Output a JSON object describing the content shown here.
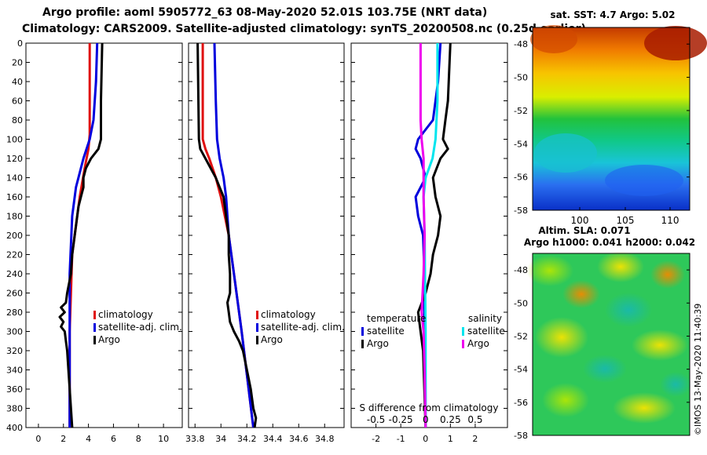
{
  "header": {
    "line1": "Argo profile: aoml 5905772_63 08-May-2020 52.01S 103.75E (NRT data)",
    "line2": "Climatology: CARS2009. Satellite-adjusted climatology: synTS_20200508.nc (0.25d earlier)"
  },
  "colors": {
    "climatology": "#e01010",
    "satellite": "#0000dd",
    "argo": "#000000",
    "salinity_sat": "#00e5ee",
    "salinity_argo": "#ee00ee"
  },
  "depth_ticks": [
    "0",
    "20",
    "40",
    "60",
    "80",
    "100",
    "120",
    "140",
    "160",
    "180",
    "200",
    "220",
    "240",
    "260",
    "280",
    "300",
    "320",
    "340",
    "360",
    "380",
    "400"
  ],
  "chart_data": [
    {
      "id": "temperature",
      "type": "line",
      "xlim": [
        -1,
        11.5
      ],
      "ylim": [
        400,
        0
      ],
      "xticks": [
        "0",
        "2",
        "4",
        "6",
        "8",
        "10"
      ],
      "xtick_values": [
        0,
        2,
        4,
        6,
        8,
        10
      ],
      "legend": [
        "climatology",
        "satellite-adj. clim.",
        "Argo"
      ],
      "series": [
        {
          "name": "climatology",
          "color": "climatology",
          "depth": [
            0,
            95,
            110,
            130,
            160,
            190,
            220,
            300,
            400
          ],
          "values": [
            4.1,
            4.1,
            4.0,
            3.7,
            3.3,
            3.0,
            2.7,
            2.5,
            2.5
          ]
        },
        {
          "name": "satellite-adj. clim.",
          "color": "satellite",
          "depth": [
            0,
            40,
            80,
            100,
            120,
            150,
            180,
            210,
            240,
            300,
            400
          ],
          "values": [
            4.7,
            4.6,
            4.4,
            4.1,
            3.6,
            3.0,
            2.7,
            2.6,
            2.5,
            2.5,
            2.5
          ]
        },
        {
          "name": "Argo",
          "color": "argo",
          "depth": [
            0,
            60,
            80,
            90,
            100,
            110,
            120,
            130,
            140,
            150,
            160,
            170,
            180,
            200,
            220,
            240,
            260,
            270,
            275,
            280,
            285,
            290,
            295,
            300,
            310,
            320,
            340,
            360,
            380,
            400
          ],
          "values": [
            5.1,
            5.0,
            5.0,
            5.0,
            5.0,
            4.8,
            4.2,
            3.8,
            3.6,
            3.6,
            3.4,
            3.2,
            3.1,
            2.9,
            2.7,
            2.6,
            2.3,
            2.2,
            1.8,
            2.1,
            1.7,
            2.0,
            1.8,
            2.1,
            2.2,
            2.3,
            2.4,
            2.5,
            2.6,
            2.7
          ]
        }
      ]
    },
    {
      "id": "salinity",
      "type": "line",
      "xlim": [
        33.75,
        34.95
      ],
      "ylim": [
        400,
        0
      ],
      "xticks": [
        "33.8",
        "34",
        "34.2",
        "34.4",
        "34.6",
        "34.8"
      ],
      "xtick_values": [
        33.8,
        34.0,
        34.2,
        34.4,
        34.6,
        34.8
      ],
      "legend": [
        "climatology",
        "satellite-adj. clim.",
        "Argo"
      ],
      "series": [
        {
          "name": "climatology",
          "color": "climatology",
          "depth": [
            0,
            100,
            110,
            120,
            140,
            160,
            180,
            200,
            240,
            300,
            400
          ],
          "values": [
            33.86,
            33.86,
            33.88,
            33.91,
            33.96,
            34.0,
            34.03,
            34.06,
            34.1,
            34.16,
            34.25
          ]
        },
        {
          "name": "satellite-adj. clim.",
          "color": "satellite",
          "depth": [
            0,
            60,
            100,
            120,
            140,
            160,
            180,
            200,
            240,
            300,
            400
          ],
          "values": [
            33.95,
            33.96,
            33.97,
            33.99,
            34.02,
            34.04,
            34.05,
            34.06,
            34.1,
            34.16,
            34.25
          ]
        },
        {
          "name": "Argo",
          "color": "argo",
          "depth": [
            0,
            100,
            110,
            120,
            130,
            140,
            150,
            160,
            180,
            200,
            220,
            240,
            260,
            270,
            280,
            290,
            300,
            310,
            320,
            340,
            360,
            380,
            390,
            400
          ],
          "values": [
            33.82,
            33.83,
            33.84,
            33.88,
            33.92,
            33.96,
            33.99,
            34.02,
            34.04,
            34.06,
            34.06,
            34.07,
            34.07,
            34.05,
            34.06,
            34.07,
            34.1,
            34.14,
            34.17,
            34.2,
            34.23,
            34.25,
            34.27,
            34.26
          ]
        }
      ]
    },
    {
      "id": "difference",
      "type": "line",
      "xlim": [
        -3,
        3.3
      ],
      "ylim": [
        400,
        0
      ],
      "xticks": [
        "-2",
        "-1",
        "0",
        "1",
        "2"
      ],
      "xtick_values": [
        -2,
        -1,
        0,
        1,
        2
      ],
      "secondary_xlabel": "S difference from climatology",
      "secondary_xticks": [
        "-0.5",
        "-0.25",
        "0",
        "0.25",
        "0.5"
      ],
      "secondary_xtick_values": [
        -0.5,
        -0.25,
        0,
        0.25,
        0.5
      ],
      "legend_temperature_title": "temperature",
      "legend_salinity_title": "salinity",
      "legend_satellite": "satellite",
      "legend_argo": "Argo",
      "series": [
        {
          "name": "temperature satellite",
          "color": "satellite",
          "depth": [
            0,
            40,
            80,
            100,
            110,
            120,
            140,
            160,
            180,
            200,
            240,
            300,
            400
          ],
          "values": [
            0.6,
            0.5,
            0.3,
            -0.3,
            -0.4,
            -0.2,
            0.0,
            -0.4,
            -0.3,
            -0.1,
            -0.05,
            -0.05,
            0.0
          ]
        },
        {
          "name": "temperature Argo",
          "color": "argo",
          "depth": [
            0,
            60,
            80,
            100,
            110,
            120,
            140,
            160,
            180,
            200,
            220,
            240,
            260,
            280,
            300,
            320,
            360,
            400
          ],
          "values": [
            1.0,
            0.9,
            0.8,
            0.7,
            0.9,
            0.6,
            0.3,
            0.4,
            0.6,
            0.5,
            0.3,
            0.2,
            0.0,
            -0.3,
            -0.2,
            -0.1,
            -0.05,
            0.0
          ]
        },
        {
          "name": "salinity satellite",
          "color": "salinity_sat",
          "depth": [
            0,
            60,
            100,
            120,
            140,
            160,
            200,
            300,
            400
          ],
          "values": [
            0.12,
            0.12,
            0.1,
            0.07,
            0.0,
            -0.02,
            -0.01,
            0.0,
            0.0
          ]
        },
        {
          "name": "salinity Argo",
          "color": "salinity_argo",
          "depth": [
            0,
            80,
            100,
            120,
            140,
            160,
            200,
            240,
            260,
            280,
            300,
            340,
            400
          ],
          "values": [
            -0.05,
            -0.05,
            -0.04,
            -0.02,
            -0.02,
            -0.02,
            -0.01,
            -0.02,
            -0.03,
            -0.04,
            -0.02,
            -0.01,
            0.0
          ]
        }
      ]
    }
  ],
  "sst_map": {
    "title": "sat. SST: 4.7 Argo: 5.02",
    "lat_ticks": [
      "-48",
      "-50",
      "-52",
      "-54",
      "-56",
      "-58"
    ],
    "lon_ticks": [
      "100",
      "105",
      "110"
    ]
  },
  "sla_map": {
    "title1": "Altim. SLA: 0.071",
    "title2": "Argo h1000: 0.041 h2000: 0.042",
    "lat_ticks": [
      "-48",
      "-50",
      "-52",
      "-54",
      "-56",
      "-58"
    ]
  },
  "side_label": "©IMOS 13-May-2020 11:40:39"
}
